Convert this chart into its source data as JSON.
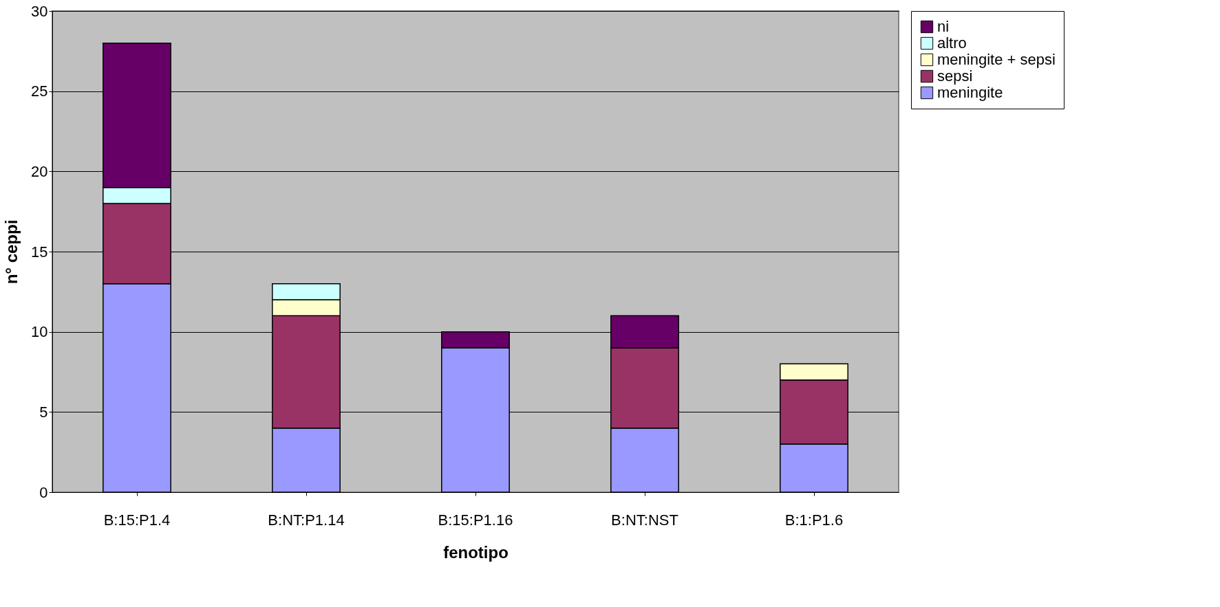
{
  "chart_data": {
    "type": "bar",
    "stacked": true,
    "xlabel": "fenotipo",
    "ylabel": "n° ceppi",
    "categories": [
      "B:15:P1.4",
      "B:NT:P1.14",
      "B:15:P1.16",
      "B:NT:NST",
      "B:1:P1.6"
    ],
    "series": [
      {
        "name": "meningite",
        "color": "#9999ff",
        "values": [
          13,
          4,
          9,
          4,
          3
        ]
      },
      {
        "name": "sepsi",
        "color": "#993366",
        "values": [
          5,
          7,
          null,
          5,
          4
        ]
      },
      {
        "name": "meningite + sepsi",
        "color": "#ffffcc",
        "values": [
          null,
          1,
          null,
          null,
          1
        ]
      },
      {
        "name": "altro",
        "color": "#ccffff",
        "values": [
          1,
          1,
          null,
          null,
          null
        ]
      },
      {
        "name": "ni",
        "color": "#660066",
        "values": [
          9,
          null,
          1,
          2,
          null
        ]
      }
    ],
    "ylim": [
      0,
      30
    ],
    "yticks": [
      0,
      5,
      10,
      15,
      20,
      25,
      30
    ],
    "grid": "y",
    "legend": "right"
  }
}
